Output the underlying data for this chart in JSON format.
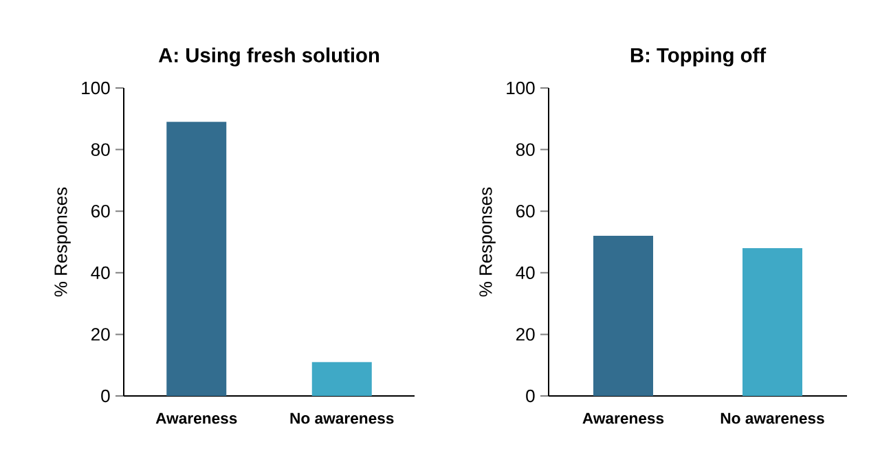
{
  "chart_data": [
    {
      "type": "bar",
      "title": "A: Using fresh solution",
      "ylabel": "% Responses",
      "categories": [
        "Awareness",
        "No awareness"
      ],
      "values": [
        89,
        11
      ],
      "colors": [
        "#336d8f",
        "#3fa9c6"
      ],
      "ylim": [
        0,
        100
      ],
      "yticks": [
        0,
        20,
        40,
        60,
        80,
        100
      ]
    },
    {
      "type": "bar",
      "title": "B: Topping off",
      "ylabel": "% Responses",
      "categories": [
        "Awareness",
        "No awareness"
      ],
      "values": [
        52,
        48
      ],
      "colors": [
        "#336d8f",
        "#3fa9c6"
      ],
      "ylim": [
        0,
        100
      ],
      "yticks": [
        0,
        20,
        40,
        60,
        80,
        100
      ]
    }
  ]
}
